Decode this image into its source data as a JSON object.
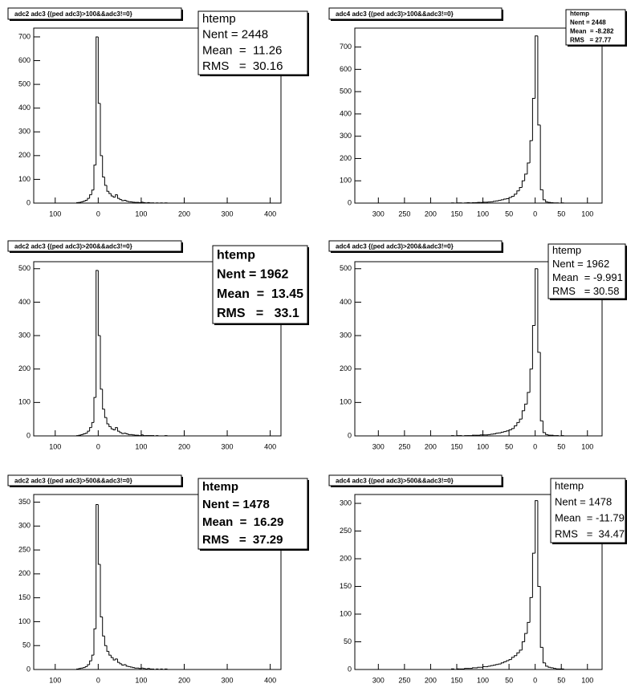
{
  "chart_data": [
    {
      "type": "histogram",
      "title": "adc2 adc3 {(ped adc3)>100&&adc3!=0}",
      "color": "#000000",
      "stats": {
        "title": "htemp",
        "lines": [
          "Nent = 2448",
          "Mean  =  11.26",
          "RMS   =  30.16"
        ]
      },
      "bins": [
        -50,
        -45,
        -40,
        -35,
        -30,
        -25,
        -20,
        -15,
        -10,
        -5,
        0,
        5,
        10,
        15,
        20,
        25,
        30,
        35,
        40,
        45,
        50,
        55,
        60,
        65,
        70,
        75,
        80,
        85,
        90,
        95,
        100,
        105,
        110,
        115,
        120,
        125,
        130,
        135,
        140,
        145,
        150,
        155,
        160
      ],
      "counts": [
        2,
        3,
        5,
        8,
        12,
        20,
        35,
        55,
        160,
        700,
        420,
        200,
        110,
        75,
        50,
        40,
        30,
        25,
        35,
        20,
        15,
        10,
        12,
        8,
        6,
        5,
        4,
        3,
        3,
        2,
        4,
        2,
        1,
        2,
        1,
        1,
        0,
        1,
        0,
        1,
        0,
        1
      ],
      "xlim": [
        -150,
        425
      ],
      "xticks": [
        {
          "value": -100,
          "label": "100"
        },
        0,
        100,
        200,
        300,
        400
      ],
      "ylim": [
        0,
        737
      ],
      "yticks": [
        0,
        100,
        200,
        300,
        400,
        500,
        600,
        700
      ]
    },
    {
      "type": "histogram",
      "title": "adc4 adc3 {(ped adc3)>100&&adc3!=0}",
      "color": "#000000",
      "stats": {
        "title": "htemp",
        "lines": [
          "Nent = 2448",
          "Mean  = -8.282",
          "RMS   = 27.77"
        ]
      },
      "bins": [
        -160,
        -155,
        -150,
        -145,
        -140,
        -135,
        -130,
        -125,
        -120,
        -115,
        -110,
        -105,
        -100,
        -95,
        -90,
        -85,
        -80,
        -75,
        -70,
        -65,
        -60,
        -55,
        -50,
        -45,
        -40,
        -35,
        -30,
        -25,
        -20,
        -15,
        -10,
        -5,
        0,
        5,
        10,
        15,
        20,
        25,
        30,
        35,
        40,
        45,
        50,
        55,
        60
      ],
      "counts": [
        1,
        0,
        1,
        1,
        0,
        1,
        2,
        1,
        2,
        2,
        3,
        3,
        4,
        4,
        5,
        6,
        8,
        10,
        12,
        15,
        18,
        20,
        25,
        30,
        40,
        55,
        70,
        100,
        130,
        180,
        280,
        470,
        750,
        350,
        60,
        15,
        5,
        3,
        2,
        1,
        1,
        0,
        1,
        0
      ],
      "xlim": [
        -345,
        128
      ],
      "xticks": [
        {
          "value": -300,
          "label": "300"
        },
        {
          "value": -250,
          "label": "250"
        },
        {
          "value": -200,
          "label": "200"
        },
        {
          "value": -150,
          "label": "150"
        },
        {
          "value": -100,
          "label": "100"
        },
        {
          "value": -50,
          "label": "50"
        },
        0,
        50,
        100
      ],
      "ylim": [
        0,
        785
      ],
      "yticks": [
        0,
        100,
        200,
        300,
        400,
        500,
        600,
        700
      ]
    },
    {
      "type": "histogram",
      "title": "adc2 adc3 {(ped adc3)>200&&adc3!=0}",
      "color": "#000000",
      "stats": {
        "title": "htemp",
        "lines": [
          "Nent = 1962",
          "Mean  =  13.45",
          "RMS   =   33.1"
        ]
      },
      "bins": [
        -50,
        -45,
        -40,
        -35,
        -30,
        -25,
        -20,
        -15,
        -10,
        -5,
        0,
        5,
        10,
        15,
        20,
        25,
        30,
        35,
        40,
        45,
        50,
        55,
        60,
        65,
        70,
        75,
        80,
        85,
        90,
        95,
        100,
        105,
        110,
        115,
        120,
        125,
        130,
        135,
        140,
        145,
        150,
        155,
        160
      ],
      "counts": [
        1,
        2,
        4,
        6,
        8,
        14,
        25,
        40,
        115,
        495,
        300,
        140,
        80,
        55,
        36,
        28,
        21,
        18,
        25,
        14,
        10,
        7,
        8,
        6,
        4,
        4,
        3,
        2,
        2,
        1,
        3,
        1,
        1,
        1,
        1,
        1,
        0,
        1,
        0,
        0,
        0,
        1
      ],
      "xlim": [
        -150,
        425
      ],
      "xticks": [
        {
          "value": -100,
          "label": "100"
        },
        0,
        100,
        200,
        300,
        400
      ],
      "ylim": [
        0,
        521
      ],
      "yticks": [
        0,
        100,
        200,
        300,
        400,
        500
      ]
    },
    {
      "type": "histogram",
      "title": "adc4 adc3 {(ped adc3)>200&&adc3!=0}",
      "color": "#000000",
      "stats": {
        "title": "htemp",
        "lines": [
          "Nent = 1962",
          "Mean  = -9.991",
          "RMS   = 30.58"
        ]
      },
      "bins": [
        -160,
        -155,
        -150,
        -145,
        -140,
        -135,
        -130,
        -125,
        -120,
        -115,
        -110,
        -105,
        -100,
        -95,
        -90,
        -85,
        -80,
        -75,
        -70,
        -65,
        -60,
        -55,
        -50,
        -45,
        -40,
        -35,
        -30,
        -25,
        -20,
        -15,
        -10,
        -5,
        0,
        5,
        10,
        15,
        20,
        25,
        30,
        35,
        40,
        45,
        50,
        55,
        60
      ],
      "counts": [
        1,
        0,
        1,
        1,
        0,
        1,
        1,
        1,
        2,
        2,
        2,
        3,
        3,
        3,
        4,
        5,
        6,
        8,
        9,
        11,
        13,
        15,
        18,
        22,
        30,
        40,
        50,
        75,
        95,
        130,
        200,
        330,
        500,
        250,
        45,
        10,
        4,
        2,
        2,
        1,
        1,
        0,
        1,
        0
      ],
      "xlim": [
        -345,
        128
      ],
      "xticks": [
        {
          "value": -300,
          "label": "300"
        },
        {
          "value": -250,
          "label": "250"
        },
        {
          "value": -200,
          "label": "200"
        },
        {
          "value": -150,
          "label": "150"
        },
        {
          "value": -100,
          "label": "100"
        },
        {
          "value": -50,
          "label": "50"
        },
        0,
        50,
        100
      ],
      "ylim": [
        0,
        521
      ],
      "yticks": [
        0,
        100,
        200,
        300,
        400,
        500
      ]
    },
    {
      "type": "histogram",
      "title": "adc2 adc3 {(ped adc3)>500&&adc3!=0}",
      "color": "#000000",
      "stats": {
        "title": "htemp",
        "lines": [
          "Nent = 1478",
          "Mean  =  16.29",
          "RMS   =  37.29"
        ]
      },
      "bins": [
        -50,
        -45,
        -40,
        -35,
        -30,
        -25,
        -20,
        -15,
        -10,
        -5,
        0,
        5,
        10,
        15,
        20,
        25,
        30,
        35,
        40,
        45,
        50,
        55,
        60,
        65,
        70,
        75,
        80,
        85,
        90,
        95,
        100,
        105,
        110,
        115,
        120,
        125,
        130,
        135,
        140,
        145,
        150,
        155,
        160
      ],
      "counts": [
        1,
        2,
        3,
        4,
        6,
        10,
        18,
        30,
        85,
        345,
        220,
        110,
        70,
        50,
        38,
        30,
        25,
        20,
        22,
        15,
        12,
        9,
        10,
        7,
        6,
        5,
        4,
        3,
        3,
        2,
        3,
        2,
        1,
        2,
        1,
        1,
        0,
        1,
        0,
        1,
        0,
        1
      ],
      "xlim": [
        -150,
        425
      ],
      "xticks": [
        {
          "value": -100,
          "label": "100"
        },
        0,
        100,
        200,
        300,
        400
      ],
      "ylim": [
        0,
        366
      ],
      "yticks": [
        0,
        50,
        100,
        150,
        200,
        250,
        300,
        350
      ]
    },
    {
      "type": "histogram",
      "title": "adc4 adc3 {(ped adc3)>500&&adc3!=0}",
      "color": "#000000",
      "stats": {
        "title": "htemp",
        "lines": [
          "Nent = 1478",
          "Mean  = -11.79",
          "RMS   =  34.47"
        ]
      },
      "bins": [
        -160,
        -155,
        -150,
        -145,
        -140,
        -135,
        -130,
        -125,
        -120,
        -115,
        -110,
        -105,
        -100,
        -95,
        -90,
        -85,
        -80,
        -75,
        -70,
        -65,
        -60,
        -55,
        -50,
        -45,
        -40,
        -35,
        -30,
        -25,
        -20,
        -15,
        -10,
        -5,
        0,
        5,
        10,
        15,
        20,
        25,
        30,
        35,
        40,
        45,
        50,
        55,
        60
      ],
      "counts": [
        1,
        0,
        1,
        1,
        1,
        2,
        2,
        2,
        3,
        3,
        4,
        4,
        5,
        5,
        6,
        7,
        8,
        9,
        10,
        12,
        14,
        16,
        18,
        22,
        25,
        30,
        35,
        50,
        65,
        85,
        130,
        210,
        305,
        150,
        40,
        12,
        6,
        4,
        3,
        2,
        1,
        1,
        1,
        0
      ],
      "xlim": [
        -345,
        128
      ],
      "xticks": [
        {
          "value": -300,
          "label": "300"
        },
        {
          "value": -250,
          "label": "250"
        },
        {
          "value": -200,
          "label": "200"
        },
        {
          "value": -150,
          "label": "150"
        },
        {
          "value": -100,
          "label": "100"
        },
        {
          "value": -50,
          "label": "50"
        },
        0,
        50,
        100
      ],
      "ylim": [
        0,
        316
      ],
      "yticks": [
        0,
        50,
        100,
        150,
        200,
        250,
        300
      ]
    }
  ]
}
